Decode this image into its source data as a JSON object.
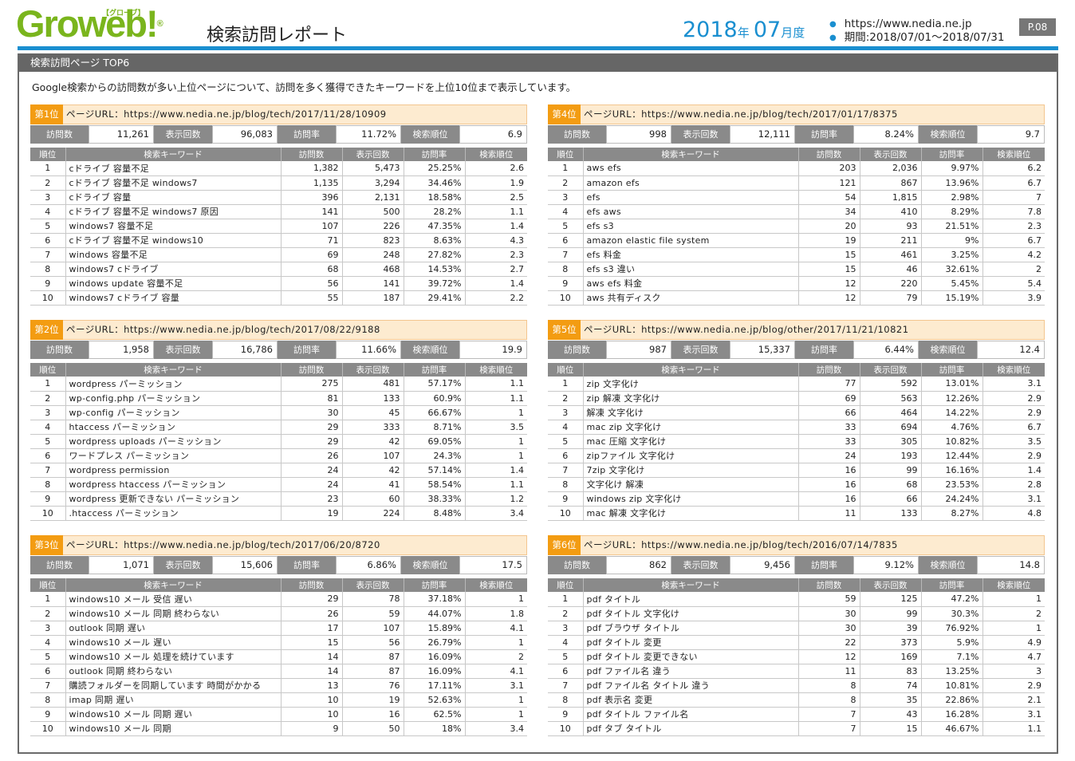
{
  "header": {
    "logo": "Groweb!",
    "logo_sub": "【グローブ】",
    "logo_reg": "®",
    "report_title": "検索訪問レポート",
    "year": "2018",
    "year_unit": "年",
    "month": "07",
    "month_unit": "月度",
    "site_url": "https://www.nedia.ne.jp",
    "period": "期間:2018/07/01～2018/07/31",
    "page_number": "P.08"
  },
  "section": {
    "title": "検索訪問ページ TOP6",
    "intro": "Google検索からの訪問数が多い上位ページについて、訪問を多く獲得できたキーワードを上位10位まで表示しています。"
  },
  "labels": {
    "visits": "訪問数",
    "impressions": "表示回数",
    "visit_rate": "訪問率",
    "search_rank": "検索順位",
    "col_rank": "順位",
    "col_keyword": "検索キーワード",
    "col_visits": "訪問数",
    "col_impressions": "表示回数",
    "col_rate": "訪問率",
    "col_position": "検索順位"
  },
  "pages": [
    {
      "rank": "第1位",
      "url": "ページURL：https://www.nedia.ne.jp/blog/tech/2017/11/28/10909",
      "visits": "11,261",
      "impressions": "96,083",
      "rate": "11.72%",
      "position": "6.9",
      "rows": [
        [
          "1",
          "cドライブ 容量不足",
          "1,382",
          "5,473",
          "25.25%",
          "2.6"
        ],
        [
          "2",
          "cドライブ 容量不足 windows7",
          "1,135",
          "3,294",
          "34.46%",
          "1.9"
        ],
        [
          "3",
          "cドライブ 容量",
          "396",
          "2,131",
          "18.58%",
          "2.5"
        ],
        [
          "4",
          "cドライブ 容量不足 windows7 原因",
          "141",
          "500",
          "28.2%",
          "1.1"
        ],
        [
          "5",
          "windows7 容量不足",
          "107",
          "226",
          "47.35%",
          "1.4"
        ],
        [
          "6",
          "cドライブ 容量不足 windows10",
          "71",
          "823",
          "8.63%",
          "4.3"
        ],
        [
          "7",
          "windows 容量不足",
          "69",
          "248",
          "27.82%",
          "2.3"
        ],
        [
          "8",
          "windows7 cドライブ",
          "68",
          "468",
          "14.53%",
          "2.7"
        ],
        [
          "9",
          "windows update 容量不足",
          "56",
          "141",
          "39.72%",
          "1.4"
        ],
        [
          "10",
          "windows7 cドライブ 容量",
          "55",
          "187",
          "29.41%",
          "2.2"
        ]
      ]
    },
    {
      "rank": "第2位",
      "url": "ページURL：https://www.nedia.ne.jp/blog/tech/2017/08/22/9188",
      "visits": "1,958",
      "impressions": "16,786",
      "rate": "11.66%",
      "position": "19.9",
      "rows": [
        [
          "1",
          "wordpress パーミッション",
          "275",
          "481",
          "57.17%",
          "1.1"
        ],
        [
          "2",
          "wp-config.php パーミッション",
          "81",
          "133",
          "60.9%",
          "1.1"
        ],
        [
          "3",
          "wp-config パーミッション",
          "30",
          "45",
          "66.67%",
          "1"
        ],
        [
          "4",
          "htaccess パーミッション",
          "29",
          "333",
          "8.71%",
          "3.5"
        ],
        [
          "5",
          "wordpress uploads パーミッション",
          "29",
          "42",
          "69.05%",
          "1"
        ],
        [
          "6",
          "ワードプレス パーミッション",
          "26",
          "107",
          "24.3%",
          "1"
        ],
        [
          "7",
          "wordpress permission",
          "24",
          "42",
          "57.14%",
          "1.4"
        ],
        [
          "8",
          "wordpress htaccess パーミッション",
          "24",
          "41",
          "58.54%",
          "1.1"
        ],
        [
          "9",
          "wordpress 更新できない パーミッション",
          "23",
          "60",
          "38.33%",
          "1.2"
        ],
        [
          "10",
          ".htaccess パーミッション",
          "19",
          "224",
          "8.48%",
          "3.4"
        ]
      ]
    },
    {
      "rank": "第3位",
      "url": "ページURL：https://www.nedia.ne.jp/blog/tech/2017/06/20/8720",
      "visits": "1,071",
      "impressions": "15,606",
      "rate": "6.86%",
      "position": "17.5",
      "rows": [
        [
          "1",
          "windows10 メール 受信 遅い",
          "29",
          "78",
          "37.18%",
          "1"
        ],
        [
          "2",
          "windows10 メール 同期 終わらない",
          "26",
          "59",
          "44.07%",
          "1.8"
        ],
        [
          "3",
          "outlook 同期 遅い",
          "17",
          "107",
          "15.89%",
          "4.1"
        ],
        [
          "4",
          "windows10 メール 遅い",
          "15",
          "56",
          "26.79%",
          "1"
        ],
        [
          "5",
          "windows10 メール 処理を続けています",
          "14",
          "87",
          "16.09%",
          "2"
        ],
        [
          "6",
          "outlook 同期 終わらない",
          "14",
          "87",
          "16.09%",
          "4.1"
        ],
        [
          "7",
          "購読フォルダーを同期しています 時間がかかる",
          "13",
          "76",
          "17.11%",
          "3.1"
        ],
        [
          "8",
          "imap 同期 遅い",
          "10",
          "19",
          "52.63%",
          "1"
        ],
        [
          "9",
          "windows10 メール 同期 遅い",
          "10",
          "16",
          "62.5%",
          "1"
        ],
        [
          "10",
          "windows10 メール 同期",
          "9",
          "50",
          "18%",
          "3.4"
        ]
      ]
    },
    {
      "rank": "第4位",
      "url": "ページURL：https://www.nedia.ne.jp/blog/tech/2017/01/17/8375",
      "visits": "998",
      "impressions": "12,111",
      "rate": "8.24%",
      "position": "9.7",
      "rows": [
        [
          "1",
          "aws efs",
          "203",
          "2,036",
          "9.97%",
          "6.2"
        ],
        [
          "2",
          "amazon efs",
          "121",
          "867",
          "13.96%",
          "6.7"
        ],
        [
          "3",
          "efs",
          "54",
          "1,815",
          "2.98%",
          "7"
        ],
        [
          "4",
          "efs aws",
          "34",
          "410",
          "8.29%",
          "7.8"
        ],
        [
          "5",
          "efs s3",
          "20",
          "93",
          "21.51%",
          "2.3"
        ],
        [
          "6",
          "amazon elastic file system",
          "19",
          "211",
          "9%",
          "6.7"
        ],
        [
          "7",
          "efs 料金",
          "15",
          "461",
          "3.25%",
          "4.2"
        ],
        [
          "8",
          "efs s3 違い",
          "15",
          "46",
          "32.61%",
          "2"
        ],
        [
          "9",
          "aws efs 料金",
          "12",
          "220",
          "5.45%",
          "5.4"
        ],
        [
          "10",
          "aws 共有ディスク",
          "12",
          "79",
          "15.19%",
          "3.9"
        ]
      ]
    },
    {
      "rank": "第5位",
      "url": "ページURL：https://www.nedia.ne.jp/blog/other/2017/11/21/10821",
      "visits": "987",
      "impressions": "15,337",
      "rate": "6.44%",
      "position": "12.4",
      "rows": [
        [
          "1",
          "zip 文字化け",
          "77",
          "592",
          "13.01%",
          "3.1"
        ],
        [
          "2",
          "zip 解凍 文字化け",
          "69",
          "563",
          "12.26%",
          "2.9"
        ],
        [
          "3",
          "解凍 文字化け",
          "66",
          "464",
          "14.22%",
          "2.9"
        ],
        [
          "4",
          "mac zip 文字化け",
          "33",
          "694",
          "4.76%",
          "6.7"
        ],
        [
          "5",
          "mac 圧縮 文字化け",
          "33",
          "305",
          "10.82%",
          "3.5"
        ],
        [
          "6",
          "zipファイル 文字化け",
          "24",
          "193",
          "12.44%",
          "2.9"
        ],
        [
          "7",
          "7zip 文字化け",
          "16",
          "99",
          "16.16%",
          "1.4"
        ],
        [
          "8",
          "文字化け 解凍",
          "16",
          "68",
          "23.53%",
          "2.8"
        ],
        [
          "9",
          "windows zip 文字化け",
          "16",
          "66",
          "24.24%",
          "3.1"
        ],
        [
          "10",
          "mac 解凍 文字化け",
          "11",
          "133",
          "8.27%",
          "4.8"
        ]
      ]
    },
    {
      "rank": "第6位",
      "url": "ページURL：https://www.nedia.ne.jp/blog/tech/2016/07/14/7835",
      "visits": "862",
      "impressions": "9,456",
      "rate": "9.12%",
      "position": "14.8",
      "rows": [
        [
          "1",
          "pdf タイトル",
          "59",
          "125",
          "47.2%",
          "1"
        ],
        [
          "2",
          "pdf タイトル 文字化け",
          "30",
          "99",
          "30.3%",
          "2"
        ],
        [
          "3",
          "pdf ブラウザ タイトル",
          "30",
          "39",
          "76.92%",
          "1"
        ],
        [
          "4",
          "pdf タイトル 変更",
          "22",
          "373",
          "5.9%",
          "4.9"
        ],
        [
          "5",
          "pdf タイトル 変更できない",
          "12",
          "169",
          "7.1%",
          "4.7"
        ],
        [
          "6",
          "pdf ファイル名 違う",
          "11",
          "83",
          "13.25%",
          "3"
        ],
        [
          "7",
          "pdf ファイル名 タイトル 違う",
          "8",
          "74",
          "10.81%",
          "2.9"
        ],
        [
          "8",
          "pdf 表示名 変更",
          "8",
          "35",
          "22.86%",
          "2.1"
        ],
        [
          "9",
          "pdf タイトル ファイル名",
          "7",
          "43",
          "16.28%",
          "3.1"
        ],
        [
          "10",
          "pdf タブ タイトル",
          "7",
          "15",
          "46.67%",
          "1.1"
        ]
      ]
    }
  ]
}
